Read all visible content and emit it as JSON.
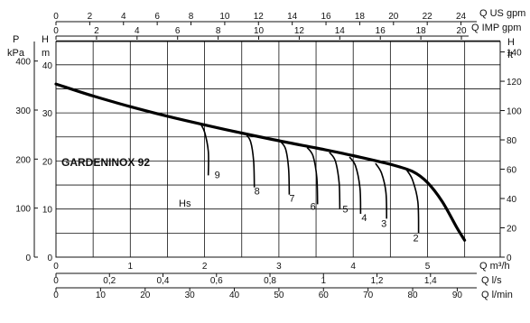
{
  "chart_data": {
    "type": "line",
    "title": "GARDENINOX 92",
    "x_main": {
      "label": "Q m³/h",
      "ticks": [
        "0",
        "1",
        "2",
        "3",
        "4",
        "5"
      ],
      "range": [
        0,
        5.6
      ]
    },
    "x_ls": {
      "label": "Q l/s",
      "ticks": [
        "0",
        "0,2",
        "0,4",
        "0,6",
        "0,8",
        "1",
        "1,2",
        "1,4"
      ]
    },
    "x_lmin": {
      "label": "Q l/min",
      "ticks": [
        "0",
        "10",
        "20",
        "30",
        "40",
        "50",
        "60",
        "70",
        "80",
        "90"
      ]
    },
    "x_usgpm": {
      "label": "Q US gpm",
      "ticks": [
        "0",
        "2",
        "4",
        "6",
        "8",
        "10",
        "12",
        "14",
        "16",
        "18",
        "20",
        "22",
        "24"
      ]
    },
    "x_impgpm": {
      "label": "Q IMP gpm",
      "ticks": [
        "0",
        "2",
        "4",
        "6",
        "8",
        "10",
        "12",
        "14",
        "16",
        "18",
        "20"
      ]
    },
    "y_m": {
      "label": "H",
      "unit": "m",
      "ticks": [
        "0",
        "10",
        "20",
        "30",
        "40"
      ],
      "range": [
        0,
        48
      ]
    },
    "y_kpa": {
      "label": "P",
      "unit": "kPa",
      "ticks": [
        "0",
        "100",
        "200",
        "300",
        "400"
      ]
    },
    "y_ft": {
      "label": "H",
      "unit": "ft",
      "ticks": [
        "0",
        "20",
        "40",
        "60",
        "80",
        "100",
        "120",
        "140"
      ]
    },
    "grid": true,
    "series": [
      {
        "x": [
          0,
          0.5,
          1.0,
          1.5,
          2.0,
          2.5,
          3.0,
          3.5,
          4.0,
          4.5,
          4.8,
          5.0,
          5.2,
          5.4,
          5.5
        ],
        "y": [
          36,
          33.5,
          31.3,
          29.3,
          27.5,
          25.8,
          24.2,
          22.7,
          21.1,
          19.3,
          17.8,
          15.5,
          11.5,
          6,
          3.5
        ]
      }
    ],
    "hs_label": "Hs",
    "suction_curves": [
      {
        "label": "9",
        "x": [
          1.95,
          2.0,
          2.05,
          2.05
        ],
        "y": [
          27.6,
          26,
          22,
          17
        ]
      },
      {
        "label": "8",
        "x": [
          2.55,
          2.62,
          2.66,
          2.67
        ],
        "y": [
          25.7,
          24,
          20,
          14.5
        ]
      },
      {
        "label": "7",
        "x": [
          3.02,
          3.09,
          3.13,
          3.14
        ],
        "y": [
          24.1,
          22.5,
          18.5,
          13
        ]
      },
      {
        "label": "6",
        "x": [
          3.38,
          3.46,
          3.51,
          3.52
        ],
        "y": [
          22.8,
          21,
          16.5,
          11
        ]
      },
      {
        "label": "5",
        "x": [
          3.68,
          3.76,
          3.81,
          3.82
        ],
        "y": [
          21.8,
          20,
          15.5,
          10
        ]
      },
      {
        "label": "4",
        "x": [
          3.95,
          4.03,
          4.09,
          4.1
        ],
        "y": [
          20.8,
          19,
          14.5,
          9
        ]
      },
      {
        "label": "3",
        "x": [
          4.3,
          4.38,
          4.44,
          4.45
        ],
        "y": [
          19.5,
          17.5,
          13.5,
          8
        ]
      },
      {
        "label": "2",
        "x": [
          4.72,
          4.8,
          4.87,
          4.88
        ],
        "y": [
          18.1,
          16,
          11.5,
          5
        ]
      }
    ]
  }
}
